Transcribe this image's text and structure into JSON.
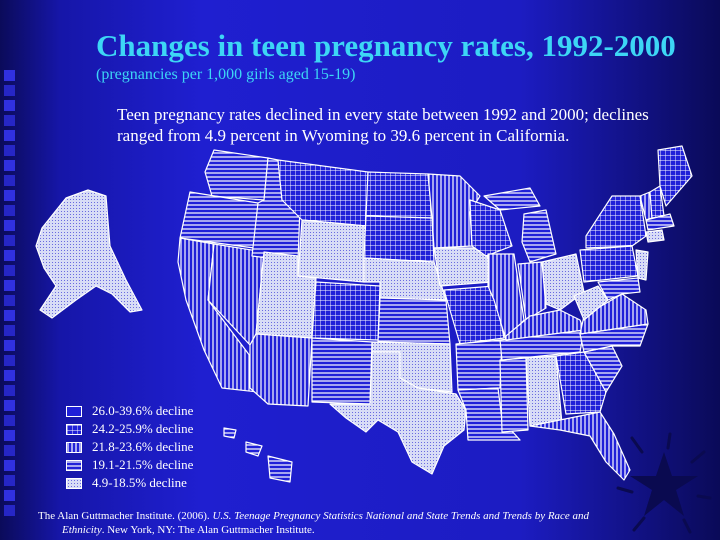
{
  "title": "Changes in teen pregnancy rates, 1992-2000",
  "subtitle": "(pregnancies per 1,000 girls aged 15-19)",
  "description": "Teen pregnancy rates declined in every state between 1992 and 2000; declines ranged from 4.9 percent in Wyoming to 39.6 percent in California.",
  "legend": [
    {
      "label": "26.0-39.6% decline",
      "pattern": "solid"
    },
    {
      "label": "24.2-25.9% decline",
      "pattern": "grid"
    },
    {
      "label": "21.8-23.6% decline",
      "pattern": "vertical"
    },
    {
      "label": "19.1-21.5% decline",
      "pattern": "horizontal"
    },
    {
      "label": "4.9-18.5% decline",
      "pattern": "dots"
    }
  ],
  "citation": {
    "line1_prefix": "The Alan Guttmacher Institute. (2006). ",
    "line1_title": "U.S. Teenage Pregnancy Statistics National and State Trends and Trends by Race and",
    "line2_title": "Ethnicity",
    "line2_rest": ".  New York, NY: The Alan Guttmacher Institute."
  },
  "colors": {
    "background": "#1c1cc2",
    "title": "#3dd6f5",
    "fill": "#2020d8",
    "lines": "#ffffff"
  }
}
